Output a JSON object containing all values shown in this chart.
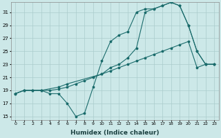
{
  "bg_color": "#cce8e8",
  "grid_color": "#aacccc",
  "line_color": "#1a6b6b",
  "xlabel": "Humidex (Indice chaleur)",
  "ylim": [
    14.5,
    32.5
  ],
  "xlim": [
    -0.5,
    23.5
  ],
  "yticks": [
    15,
    17,
    19,
    21,
    23,
    25,
    27,
    29,
    31
  ],
  "xticks": [
    0,
    1,
    2,
    3,
    4,
    5,
    6,
    7,
    8,
    9,
    10,
    11,
    12,
    13,
    14,
    15,
    16,
    17,
    18,
    19,
    20,
    21,
    22,
    23
  ],
  "line1_x": [
    0,
    1,
    2,
    3,
    4,
    5,
    6,
    7,
    8,
    9,
    10,
    11,
    12,
    13,
    14,
    15,
    16,
    17,
    18,
    19,
    20,
    21,
    22,
    23
  ],
  "line1_y": [
    18.5,
    19.0,
    19.0,
    19.0,
    19.0,
    19.2,
    19.5,
    20.0,
    20.5,
    21.0,
    21.5,
    22.0,
    22.5,
    23.0,
    23.5,
    24.0,
    24.5,
    25.0,
    25.5,
    26.0,
    26.5,
    22.5,
    23.0,
    23.0
  ],
  "line2_x": [
    0,
    1,
    2,
    3,
    4,
    5,
    6,
    7,
    8,
    9,
    10,
    11,
    12,
    13,
    14,
    15,
    16,
    17,
    18,
    19,
    20,
    21,
    22,
    23
  ],
  "line2_y": [
    18.5,
    19.0,
    19.0,
    19.0,
    18.5,
    18.5,
    17.0,
    15.0,
    15.5,
    19.5,
    23.5,
    26.5,
    27.5,
    28.0,
    31.0,
    31.5,
    31.5,
    32.0,
    32.5,
    32.0,
    29.0,
    25.0,
    23.0,
    23.0
  ],
  "line3_x": [
    0,
    1,
    2,
    3,
    5,
    6,
    10,
    11,
    12,
    13,
    14,
    15,
    16,
    17,
    18,
    19,
    20,
    21,
    22,
    23
  ],
  "line3_y": [
    18.5,
    19.0,
    19.0,
    19.0,
    19.5,
    20.0,
    21.5,
    22.5,
    23.0,
    24.0,
    25.5,
    31.0,
    31.5,
    32.0,
    32.5,
    32.0,
    29.0,
    25.0,
    23.0,
    23.0
  ]
}
